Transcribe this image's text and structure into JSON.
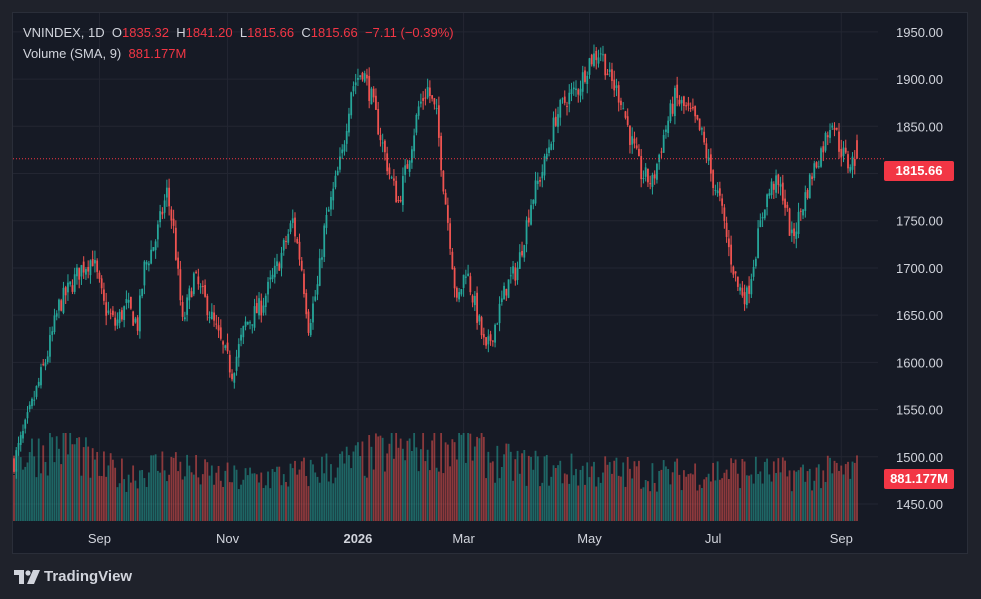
{
  "legend": {
    "symbol": "VNINDEX",
    "interval": "1D",
    "open_label": "O",
    "open": "1835.32",
    "high_label": "H",
    "high": "1841.20",
    "low_label": "L",
    "low": "1815.66",
    "close_label": "C",
    "close": "1815.66",
    "change": "−7.11 (−0.39%)",
    "volume_label": "Volume (SMA, 9)",
    "volume_value": "881.177M"
  },
  "price_tag": "1815.66",
  "volume_tag": "881.177M",
  "brand": "TradingView",
  "colors": {
    "up": "#26a69a",
    "down": "#ef5350",
    "tag": "#f23645",
    "background": "#161a25",
    "grid": "#232632",
    "axis_text": "#d1d4dc"
  },
  "chart_data": {
    "type": "candlestick",
    "title": "VNINDEX, 1D",
    "y_ticks": [
      1450,
      1500,
      1550,
      1600,
      1650,
      1700,
      1750,
      1800,
      1850,
      1900,
      1950
    ],
    "y_tick_labels": [
      "1450.00",
      "1500.00",
      "1550.00",
      "1600.00",
      "1650.00",
      "1700.00",
      "1750.00",
      "1800.00",
      "1850.00",
      "1900.00",
      "1950.00"
    ],
    "ylim": [
      1432,
      1970
    ],
    "x_tick_labels": [
      "Sep",
      "Nov",
      "2026",
      "Mar",
      "May",
      "Jul",
      "Sep"
    ],
    "x_tick_bar_index": [
      38,
      95,
      153,
      200,
      256,
      311,
      368
    ],
    "last_price_line": 1815.66,
    "grid": true,
    "series": [
      {
        "name": "VNINDEX price path",
        "anchors": [
          [
            0,
            1495
          ],
          [
            5,
            1530
          ],
          [
            10,
            1570
          ],
          [
            15,
            1610
          ],
          [
            20,
            1660
          ],
          [
            25,
            1680
          ],
          [
            30,
            1700
          ],
          [
            35,
            1710
          ],
          [
            40,
            1660
          ],
          [
            45,
            1640
          ],
          [
            50,
            1660
          ],
          [
            55,
            1640
          ],
          [
            58,
            1700
          ],
          [
            63,
            1730
          ],
          [
            68,
            1780
          ],
          [
            71,
            1740
          ],
          [
            75,
            1640
          ],
          [
            80,
            1690
          ],
          [
            86,
            1660
          ],
          [
            92,
            1620
          ],
          [
            97,
            1590
          ],
          [
            103,
            1640
          ],
          [
            110,
            1660
          ],
          [
            117,
            1700
          ],
          [
            124,
            1750
          ],
          [
            128,
            1700
          ],
          [
            131,
            1640
          ],
          [
            135,
            1680
          ],
          [
            138,
            1740
          ],
          [
            142,
            1780
          ],
          [
            146,
            1820
          ],
          [
            150,
            1890
          ],
          [
            155,
            1910
          ],
          [
            159,
            1880
          ],
          [
            163,
            1840
          ],
          [
            167,
            1800
          ],
          [
            171,
            1770
          ],
          [
            175,
            1810
          ],
          [
            180,
            1870
          ],
          [
            184,
            1890
          ],
          [
            188,
            1860
          ],
          [
            191,
            1790
          ],
          [
            194,
            1730
          ],
          [
            197,
            1660
          ],
          [
            201,
            1700
          ],
          [
            206,
            1650
          ],
          [
            210,
            1610
          ],
          [
            214,
            1640
          ],
          [
            219,
            1680
          ],
          [
            224,
            1700
          ],
          [
            230,
            1770
          ],
          [
            236,
            1810
          ],
          [
            241,
            1860
          ],
          [
            246,
            1880
          ],
          [
            251,
            1890
          ],
          [
            256,
            1920
          ],
          [
            261,
            1930
          ],
          [
            265,
            1900
          ],
          [
            270,
            1880
          ],
          [
            274,
            1840
          ],
          [
            279,
            1800
          ],
          [
            284,
            1790
          ],
          [
            289,
            1840
          ],
          [
            294,
            1880
          ],
          [
            298,
            1870
          ],
          [
            302,
            1860
          ],
          [
            306,
            1840
          ],
          [
            310,
            1800
          ],
          [
            314,
            1770
          ],
          [
            318,
            1720
          ],
          [
            322,
            1680
          ],
          [
            326,
            1670
          ],
          [
            330,
            1720
          ],
          [
            334,
            1770
          ],
          [
            338,
            1790
          ],
          [
            342,
            1780
          ],
          [
            346,
            1730
          ],
          [
            350,
            1760
          ],
          [
            355,
            1800
          ],
          [
            360,
            1830
          ],
          [
            364,
            1860
          ],
          [
            367,
            1830
          ],
          [
            371,
            1810
          ],
          [
            375,
            1815.66
          ]
        ]
      },
      {
        "name": "Volume",
        "anchors": [
          [
            0,
            0.75
          ],
          [
            15,
            0.85
          ],
          [
            25,
            0.95
          ],
          [
            35,
            0.65
          ],
          [
            50,
            0.55
          ],
          [
            70,
            0.7
          ],
          [
            85,
            0.55
          ],
          [
            100,
            0.5
          ],
          [
            125,
            0.55
          ],
          [
            150,
            0.7
          ],
          [
            170,
            0.85
          ],
          [
            190,
            0.9
          ],
          [
            200,
            0.95
          ],
          [
            215,
            0.7
          ],
          [
            240,
            0.6
          ],
          [
            260,
            0.6
          ],
          [
            290,
            0.55
          ],
          [
            320,
            0.6
          ],
          [
            350,
            0.55
          ],
          [
            375,
            0.6
          ]
        ]
      }
    ]
  }
}
